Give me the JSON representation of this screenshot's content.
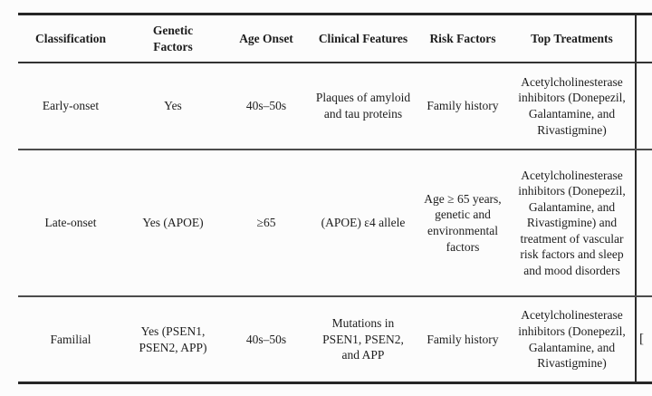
{
  "colors": {
    "background": "#fcfcfc",
    "text": "#1d1d1d",
    "rule_thick": "#262626",
    "rule_thin": "#4c4c4c"
  },
  "table": {
    "columns": [
      {
        "label": "Classification"
      },
      {
        "label": "Genetic Factors"
      },
      {
        "label": "Age Onset"
      },
      {
        "label": "Clinical Features"
      },
      {
        "label": "Risk Factors"
      },
      {
        "label": "Top Treatments"
      }
    ],
    "rows": [
      {
        "classification": "Early-onset",
        "genetic_factors": "Yes",
        "age_onset": "40s–50s",
        "clinical_features": "Plaques of amyloid and tau proteins",
        "risk_factors": "Family history",
        "top_treatments": "Acetylcholinesterase inhibitors (Donepezil, Galantamine, and Rivastigmine)"
      },
      {
        "classification": "Late-onset",
        "genetic_factors": "Yes (APOE)",
        "age_onset": "≥65",
        "clinical_features": "(APOE) ε4 allele",
        "risk_factors": "Age ≥ 65 years, genetic and environmental factors",
        "top_treatments": "Acetylcholinesterase inhibitors (Donepezil, Galantamine, and Rivastigmine) and treatment of vascular risk factors and sleep and mood disorders"
      },
      {
        "classification": "Familial",
        "genetic_factors": "Yes (PSEN1, PSEN2, APP)",
        "age_onset": "40s–50s",
        "clinical_features": "Mutations in PSEN1, PSEN2, and APP",
        "risk_factors": "Family history",
        "top_treatments": "Acetylcholinesterase inhibitors (Donepezil, Galantamine, and Rivastigmine)"
      }
    ],
    "cropped_reference_fragment": "["
  }
}
